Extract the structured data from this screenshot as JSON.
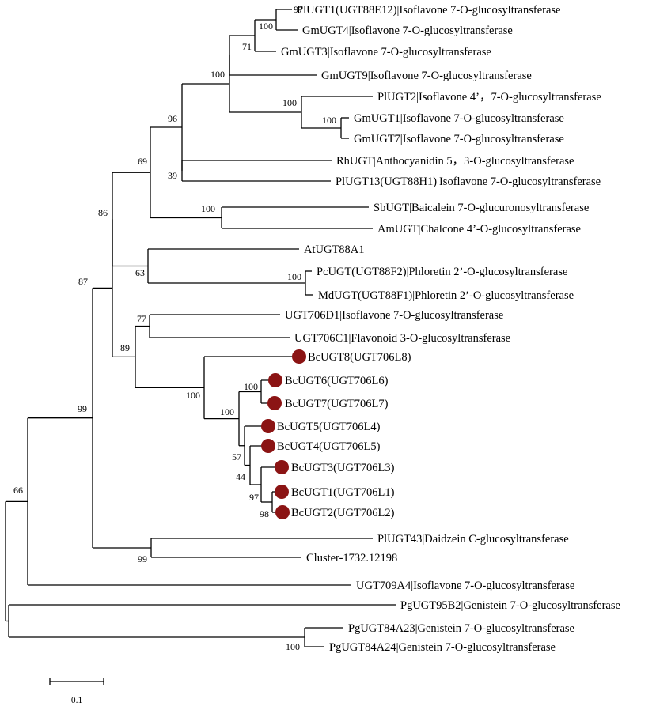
{
  "tree": {
    "leaves": [
      {
        "id": "plugt1",
        "label": "PlUGT1(UGT88E12)|Isoflavone 7-O-glucosyltransferase",
        "marker": false
      },
      {
        "id": "gmugt4",
        "label": "GmUGT4|Isoflavone 7-O-glucosyltransferase",
        "marker": false
      },
      {
        "id": "gmugt3",
        "label": "GmUGT3|Isoflavone 7-O-glucosyltransferase",
        "marker": false
      },
      {
        "id": "gmugt9",
        "label": "GmUGT9|Isoflavone 7-O-glucosyltransferase",
        "marker": false
      },
      {
        "id": "plugt2",
        "label": "PlUGT2|Isoflavone 4’，7-O-glucosyltransferase",
        "marker": false
      },
      {
        "id": "gmugt1",
        "label": "GmUGT1|Isoflavone 7-O-glucosyltransferase",
        "marker": false
      },
      {
        "id": "gmugt7",
        "label": "GmUGT7|Isoflavone 7-O-glucosyltransferase",
        "marker": false
      },
      {
        "id": "rhugt",
        "label": "RhUGT|Anthocyanidin 5，3-O-glucosyltransferase",
        "marker": false
      },
      {
        "id": "plugt13",
        "label": "PlUGT13(UGT88H1)|Isoflavone 7-O-glucosyltransferase",
        "marker": false
      },
      {
        "id": "sbugt",
        "label": "SbUGT|Baicalein 7-O-glucuronosyltransferase",
        "marker": false
      },
      {
        "id": "amugt",
        "label": "AmUGT|Chalcone 4’-O-glucosyltransferase",
        "marker": false
      },
      {
        "id": "atugt88a1",
        "label": "AtUGT88A1",
        "marker": false
      },
      {
        "id": "pcugt",
        "label": "PcUGT(UGT88F2)|Phloretin 2’-O-glucosyltransferase",
        "marker": false
      },
      {
        "id": "mdugt",
        "label": "MdUGT(UGT88F1)|Phloretin 2’-O-glucosyltransferase",
        "marker": false
      },
      {
        "id": "ugt706d1",
        "label": "UGT706D1|Isoflavone 7-O-glucosyltransferase",
        "marker": false
      },
      {
        "id": "ugt706c1",
        "label": "UGT706C1|Flavonoid 3-O-glucosyltransferase",
        "marker": false
      },
      {
        "id": "bcugt8",
        "label": "BcUGT8(UGT706L8)",
        "marker": true
      },
      {
        "id": "bcugt6",
        "label": "BcUGT6(UGT706L6)",
        "marker": true
      },
      {
        "id": "bcugt7",
        "label": "BcUGT7(UGT706L7)",
        "marker": true
      },
      {
        "id": "bcugt5",
        "label": "BcUGT5(UGT706L4)",
        "marker": true
      },
      {
        "id": "bcugt4",
        "label": "BcUGT4(UGT706L5)",
        "marker": true
      },
      {
        "id": "bcugt3",
        "label": "BcUGT3(UGT706L3)",
        "marker": true
      },
      {
        "id": "bcugt1",
        "label": "BcUGT1(UGT706L1)",
        "marker": true
      },
      {
        "id": "bcugt2",
        "label": "BcUGT2(UGT706L2)",
        "marker": true
      },
      {
        "id": "plugt43",
        "label": "PlUGT43|Daidzein C-glucosyltransferase",
        "marker": false
      },
      {
        "id": "cluster",
        "label": "Cluster-1732.12198",
        "marker": false
      },
      {
        "id": "ugt709a4",
        "label": "UGT709A4|Isoflavone 7-O-glucosyltransferase",
        "marker": false
      },
      {
        "id": "pgugt95b2",
        "label": "PgUGT95B2|Genistein 7-O-glucosyltransferase",
        "marker": false
      },
      {
        "id": "pgugt84a23",
        "label": "PgUGT84A23|Genistein 7-O-glucosyltransferase",
        "marker": false
      },
      {
        "id": "pgugt84a24",
        "label": "PgUGT84A24|Genistein 7-O-glucosyltransferase",
        "marker": false
      }
    ],
    "bootstrap": [
      {
        "id": "bs-97",
        "value": "97"
      },
      {
        "id": "bs-100-gm4",
        "value": "100"
      },
      {
        "id": "bs-71",
        "value": "71"
      },
      {
        "id": "bs-100-gm9",
        "value": "100"
      },
      {
        "id": "bs-100-pl2",
        "value": "100"
      },
      {
        "id": "bs-100-gm1",
        "value": "100"
      },
      {
        "id": "bs-96",
        "value": "96"
      },
      {
        "id": "bs-39",
        "value": "39"
      },
      {
        "id": "bs-69",
        "value": "69"
      },
      {
        "id": "bs-100-sb",
        "value": "100"
      },
      {
        "id": "bs-86",
        "value": "86"
      },
      {
        "id": "bs-63",
        "value": "63"
      },
      {
        "id": "bs-100-pc",
        "value": "100"
      },
      {
        "id": "bs-87",
        "value": "87"
      },
      {
        "id": "bs-77",
        "value": "77"
      },
      {
        "id": "bs-89",
        "value": "89"
      },
      {
        "id": "bs-100-bc",
        "value": "100"
      },
      {
        "id": "bs-100-bc2",
        "value": "100"
      },
      {
        "id": "bs-100-bc6",
        "value": "100"
      },
      {
        "id": "bs-57",
        "value": "57"
      },
      {
        "id": "bs-44",
        "value": "44"
      },
      {
        "id": "bs-97-bc",
        "value": "97"
      },
      {
        "id": "bs-98",
        "value": "98"
      },
      {
        "id": "bs-99-top",
        "value": "99"
      },
      {
        "id": "bs-99-pl43",
        "value": "99"
      },
      {
        "id": "bs-66",
        "value": "66"
      },
      {
        "id": "bs-100-pg",
        "value": "100"
      }
    ],
    "marker_color": "#8b1414",
    "branch_color": "#000000",
    "scale_bar": {
      "label": "0.1",
      "length": 0.1
    }
  }
}
